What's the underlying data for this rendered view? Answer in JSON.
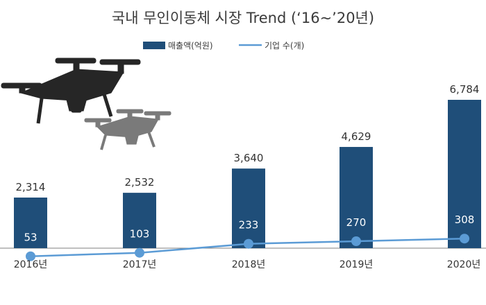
{
  "colors": {
    "bar": "#1f4e79",
    "line": "#5b9bd5",
    "axis": "#7f7f7f",
    "drone_dark": "#262626",
    "drone_light": "#7a7a7a"
  },
  "icons": [
    "drone-icon",
    "drone-icon"
  ],
  "chart_data": {
    "type": "bar",
    "title": "국내 무인이동체 시장 Trend (‘16~’20년)",
    "categories": [
      "2016년",
      "2017년",
      "2018년",
      "2019년",
      "2020년"
    ],
    "series": [
      {
        "name": "매출액(억원)",
        "type": "bar",
        "values": [
          2314,
          2532,
          3640,
          4629,
          6784
        ],
        "labels": [
          "2,314",
          "2,532",
          "3,640",
          "4,629",
          "6,784"
        ]
      },
      {
        "name": "기업 수(개)",
        "type": "line",
        "values": [
          53,
          103,
          233,
          270,
          308
        ],
        "labels": [
          "53",
          "103",
          "233",
          "270",
          "308"
        ]
      }
    ],
    "legend_position": "top-center",
    "grid": false
  }
}
